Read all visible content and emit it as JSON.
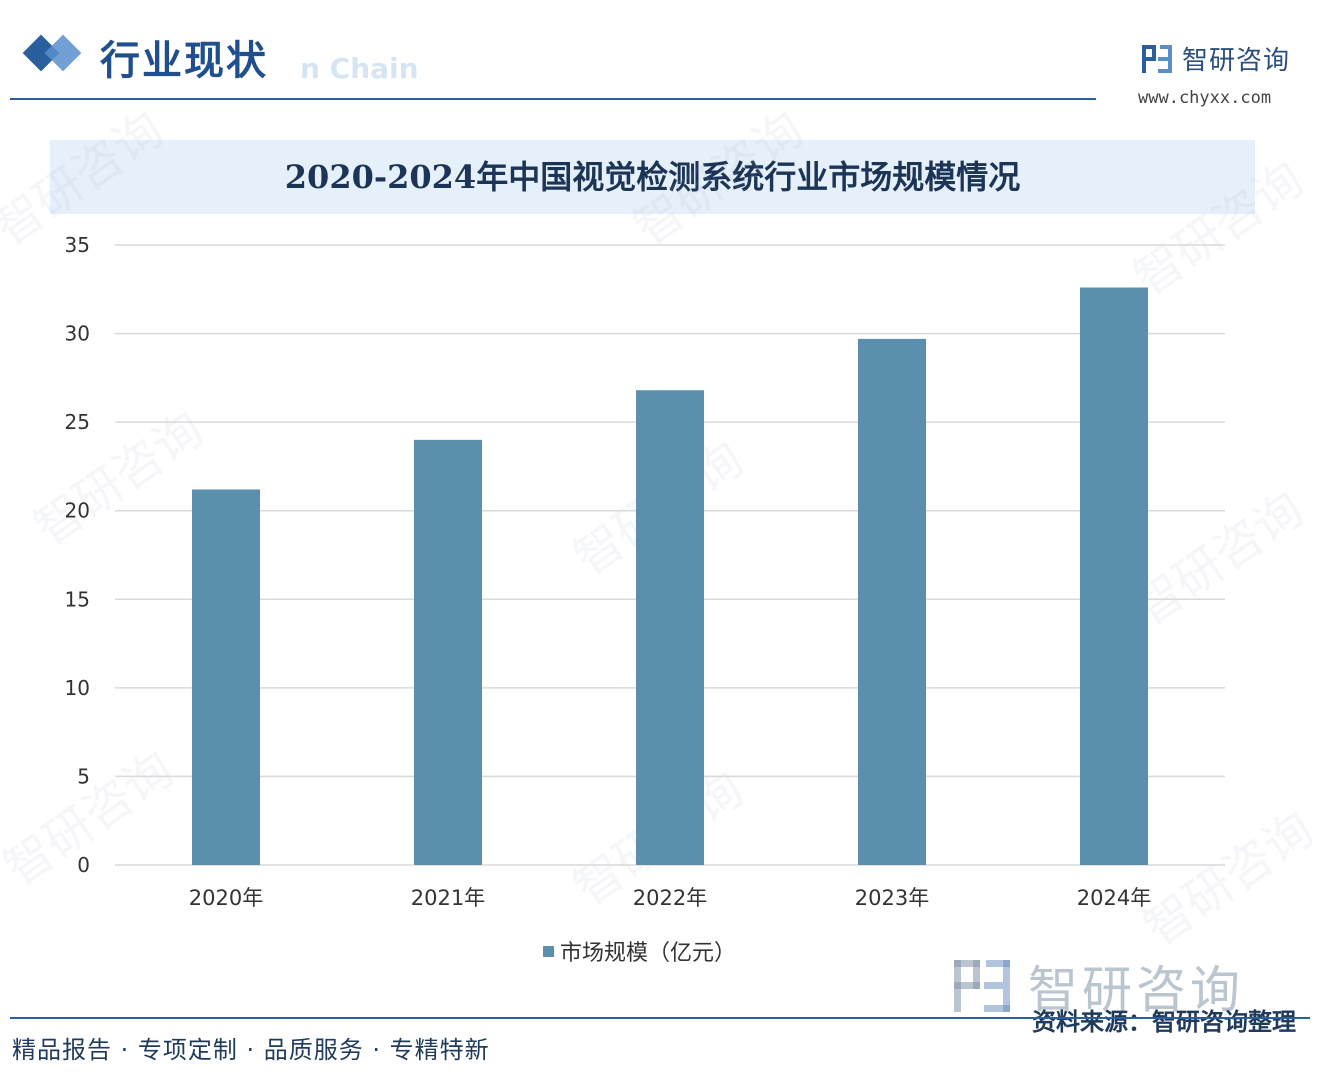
{
  "header": {
    "section_title": "行业现状",
    "ghost_text": "n Chain",
    "logo_name": "智研咨询",
    "logo_url": "www.chyxx.com"
  },
  "watermark": {
    "text": "智研咨询"
  },
  "chart_data": {
    "type": "bar",
    "title": "2020-2024年中国视觉检测系统行业市场规模情况",
    "categories": [
      "2020年",
      "2021年",
      "2022年",
      "2023年",
      "2024年"
    ],
    "series": [
      {
        "name": "市场规模（亿元）",
        "values": [
          21.2,
          24.0,
          26.8,
          29.7,
          32.6
        ]
      }
    ],
    "ylim": [
      0,
      35
    ],
    "yticks": [
      0,
      5,
      10,
      15,
      20,
      25,
      30,
      35
    ],
    "xlabel": "",
    "ylabel": "",
    "grid": true,
    "legend": "bottom-center",
    "colors": {
      "bar": "#5b8fae",
      "grid": "#d9d9d9"
    }
  },
  "footer": {
    "source": "资料来源：智研咨询整理",
    "tagline": "精品报告 · 专项定制 · 品质服务 · 专精特新"
  }
}
